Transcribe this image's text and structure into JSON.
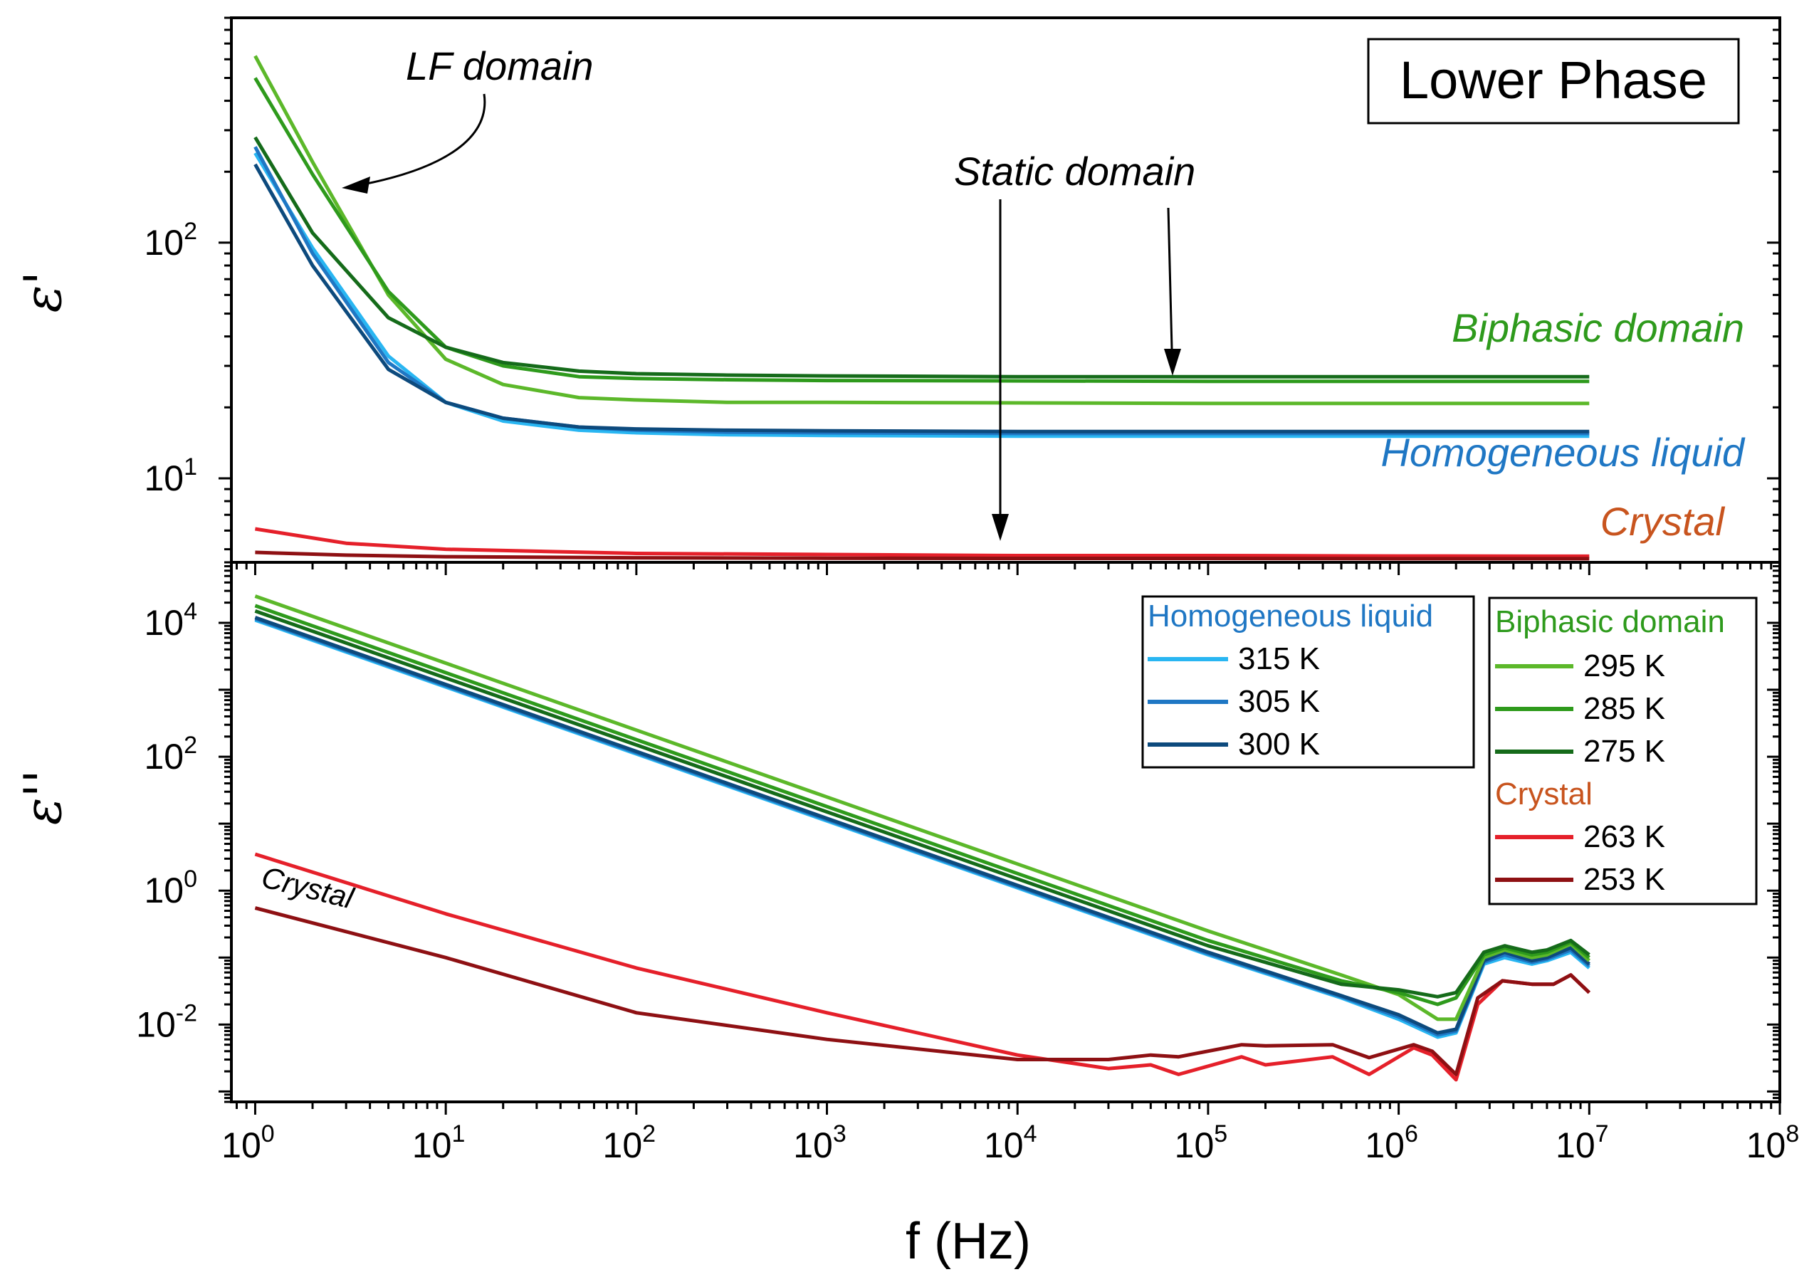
{
  "chart_data": [
    {
      "type": "line",
      "panel": "top",
      "title": "Lower Phase",
      "ylabel": "ε'",
      "xlabel": "f (Hz)",
      "x_scale": "log",
      "y_scale": "log",
      "xlim": [
        0.75,
        100000000
      ],
      "ylim": [
        4.4,
        900
      ],
      "yticks": [
        {
          "base": "10",
          "exp": "1",
          "value": 10
        },
        {
          "base": "10",
          "exp": "2",
          "value": 100
        }
      ],
      "annotations": {
        "lf": "LF domain",
        "static": "Static domain",
        "biphasic": "Biphasic domain",
        "homogeneous": "Homogeneous liquid",
        "crystal": "Crystal"
      },
      "series": [
        {
          "name": "315 K",
          "color": "#29b6f2",
          "x": [
            1,
            2,
            5,
            10,
            20,
            50,
            100,
            300,
            1000,
            10000,
            100000,
            1000000,
            10000000
          ],
          "y": [
            240,
            95,
            33,
            21,
            17.5,
            16,
            15.6,
            15.3,
            15.2,
            15.1,
            15.1,
            15.1,
            15.1
          ]
        },
        {
          "name": "305 K",
          "color": "#1f77c4",
          "x": [
            1,
            2,
            5,
            10,
            20,
            50,
            100,
            300,
            1000,
            10000,
            100000,
            1000000,
            10000000
          ],
          "y": [
            255,
            90,
            31,
            21,
            18,
            16.5,
            16,
            15.7,
            15.6,
            15.5,
            15.5,
            15.5,
            15.5
          ]
        },
        {
          "name": "300 K",
          "color": "#0d4a7d",
          "x": [
            1,
            2,
            5,
            10,
            20,
            50,
            100,
            300,
            1000,
            10000,
            100000,
            1000000,
            10000000
          ],
          "y": [
            215,
            80,
            29,
            21,
            18,
            16.5,
            16.2,
            16,
            15.9,
            15.8,
            15.8,
            15.8,
            15.8
          ]
        },
        {
          "name": "295 K",
          "color": "#5cb82a",
          "x": [
            1,
            2,
            5,
            10,
            20,
            50,
            100,
            300,
            1000,
            10000,
            100000,
            1000000,
            10000000
          ],
          "y": [
            620,
            220,
            60,
            32,
            25,
            22,
            21.5,
            21,
            21,
            20.9,
            20.8,
            20.8,
            20.8
          ]
        },
        {
          "name": "285 K",
          "color": "#2e9a1c",
          "x": [
            1,
            2,
            5,
            10,
            20,
            50,
            100,
            300,
            1000,
            10000,
            100000,
            1000000,
            10000000
          ],
          "y": [
            500,
            195,
            62,
            36,
            30,
            27,
            26.5,
            26.2,
            26,
            25.9,
            25.8,
            25.8,
            25.8
          ]
        },
        {
          "name": "275 K",
          "color": "#156b1a",
          "x": [
            1,
            2,
            5,
            10,
            20,
            50,
            100,
            300,
            1000,
            10000,
            100000,
            1000000,
            10000000
          ],
          "y": [
            280,
            110,
            48,
            36,
            31,
            28.5,
            27.8,
            27.4,
            27.2,
            27,
            27,
            27,
            27
          ]
        },
        {
          "name": "263 K",
          "color": "#e5202a",
          "x": [
            1,
            3,
            10,
            100,
            1000,
            10000,
            100000,
            1000000,
            10000000
          ],
          "y": [
            6.1,
            5.3,
            5.0,
            4.8,
            4.75,
            4.7,
            4.7,
            4.68,
            4.67
          ]
        },
        {
          "name": "253 K",
          "color": "#8e1013",
          "x": [
            1,
            3,
            10,
            100,
            1000,
            10000,
            100000,
            1000000,
            10000000
          ],
          "y": [
            4.85,
            4.72,
            4.65,
            4.6,
            4.58,
            4.57,
            4.57,
            4.56,
            4.56
          ]
        }
      ]
    },
    {
      "type": "line",
      "panel": "bottom",
      "ylabel": "ε''",
      "xlabel": "f (Hz)",
      "x_scale": "log",
      "y_scale": "log",
      "xlim": [
        0.75,
        100000000
      ],
      "ylim": [
        0.0007,
        80000
      ],
      "xticks": [
        {
          "base": "10",
          "exp": "0",
          "value": 1
        },
        {
          "base": "10",
          "exp": "1",
          "value": 10
        },
        {
          "base": "10",
          "exp": "2",
          "value": 100
        },
        {
          "base": "10",
          "exp": "3",
          "value": 1000
        },
        {
          "base": "10",
          "exp": "4",
          "value": 10000
        },
        {
          "base": "10",
          "exp": "5",
          "value": 100000
        },
        {
          "base": "10",
          "exp": "6",
          "value": 1000000
        },
        {
          "base": "10",
          "exp": "7",
          "value": 10000000
        },
        {
          "base": "10",
          "exp": "8",
          "value": 100000000
        }
      ],
      "yticks": [
        {
          "base": "10",
          "exp": "-2",
          "value": 0.01
        },
        {
          "base": "10",
          "exp": "0",
          "value": 1
        },
        {
          "base": "10",
          "exp": "2",
          "value": 100
        },
        {
          "base": "10",
          "exp": "4",
          "value": 10000
        }
      ],
      "annotations": {
        "crystal": "Crystal"
      },
      "legend_groups": [
        {
          "title": "Homogeneous liquid",
          "color": "#1f77c4",
          "entries": [
            "315 K",
            "305 K",
            "300 K"
          ]
        },
        {
          "title": "Biphasic domain",
          "color": "#2e9a1c",
          "entries": [
            "295 K",
            "285 K",
            "275 K"
          ]
        },
        {
          "title": "Crystal",
          "color": "#c8541e",
          "entries": [
            "263 K",
            "253 K"
          ]
        }
      ],
      "series": [
        {
          "name": "315 K",
          "color": "#29b6f2",
          "x": [
            1,
            10,
            100,
            1000,
            10000,
            100000,
            500000,
            1000000,
            1600000,
            2000000,
            2800000,
            3600000,
            5000000,
            6000000,
            8000000,
            10000000
          ],
          "y": [
            11000,
            1100,
            110,
            11,
            1.1,
            0.11,
            0.025,
            0.012,
            0.0065,
            0.0075,
            0.08,
            0.1,
            0.08,
            0.09,
            0.12,
            0.07
          ]
        },
        {
          "name": "305 K",
          "color": "#1f77c4",
          "x": [
            1,
            10,
            100,
            1000,
            10000,
            100000,
            500000,
            1000000,
            1600000,
            2000000,
            2800000,
            3600000,
            5000000,
            6000000,
            8000000,
            10000000
          ],
          "y": [
            11500,
            1150,
            115,
            11.5,
            1.15,
            0.115,
            0.026,
            0.013,
            0.007,
            0.008,
            0.085,
            0.11,
            0.085,
            0.095,
            0.13,
            0.075
          ]
        },
        {
          "name": "300 K",
          "color": "#0d4a7d",
          "x": [
            1,
            10,
            100,
            1000,
            10000,
            100000,
            500000,
            1000000,
            1600000,
            2000000,
            2800000,
            3600000,
            5000000,
            6000000,
            8000000,
            10000000
          ],
          "y": [
            12000,
            1200,
            120,
            12,
            1.2,
            0.12,
            0.027,
            0.014,
            0.0075,
            0.0085,
            0.09,
            0.12,
            0.09,
            0.1,
            0.14,
            0.08
          ]
        },
        {
          "name": "295 K",
          "color": "#5cb82a",
          "x": [
            1,
            10,
            100,
            1000,
            10000,
            100000,
            500000,
            1000000,
            1600000,
            2000000,
            2800000,
            3600000,
            5000000,
            6000000,
            8000000,
            10000000
          ],
          "y": [
            25000,
            2500,
            250,
            25,
            2.5,
            0.25,
            0.055,
            0.028,
            0.012,
            0.012,
            0.1,
            0.13,
            0.1,
            0.11,
            0.16,
            0.09
          ]
        },
        {
          "name": "285 K",
          "color": "#2e9a1c",
          "x": [
            1,
            10,
            100,
            1000,
            10000,
            100000,
            500000,
            1000000,
            1600000,
            2000000,
            2800000,
            3600000,
            5000000,
            6000000,
            8000000,
            10000000
          ],
          "y": [
            18000,
            1800,
            180,
            18,
            1.8,
            0.18,
            0.045,
            0.03,
            0.02,
            0.025,
            0.11,
            0.14,
            0.11,
            0.12,
            0.17,
            0.1
          ]
        },
        {
          "name": "275 K",
          "color": "#156b1a",
          "x": [
            1,
            10,
            100,
            1000,
            10000,
            100000,
            500000,
            1000000,
            1600000,
            2000000,
            2800000,
            3600000,
            5000000,
            6000000,
            8000000,
            10000000
          ],
          "y": [
            15000,
            1500,
            150,
            15,
            1.5,
            0.15,
            0.04,
            0.033,
            0.026,
            0.03,
            0.12,
            0.15,
            0.12,
            0.13,
            0.18,
            0.11
          ]
        },
        {
          "name": "263 K",
          "color": "#e5202a",
          "x": [
            1,
            10,
            100,
            1000,
            10000,
            30000,
            50000,
            70000,
            150000,
            200000,
            450000,
            700000,
            1200000,
            1500000,
            2000000,
            2600000,
            3500000,
            5000000,
            6500000,
            8000000,
            10000000
          ],
          "y": [
            3.5,
            0.45,
            0.07,
            0.015,
            0.0035,
            0.0022,
            0.0025,
            0.0018,
            0.0033,
            0.0025,
            0.0033,
            0.0018,
            0.0045,
            0.0035,
            0.0015,
            0.02,
            0.045,
            0.04,
            0.04,
            0.055,
            0.03
          ]
        },
        {
          "name": "253 K",
          "color": "#8e1013",
          "x": [
            1,
            10,
            100,
            1000,
            10000,
            30000,
            50000,
            70000,
            150000,
            200000,
            450000,
            700000,
            1200000,
            1500000,
            2000000,
            2600000,
            3500000,
            5000000,
            6500000,
            8000000,
            10000000
          ],
          "y": [
            0.55,
            0.1,
            0.015,
            0.006,
            0.003,
            0.003,
            0.0035,
            0.0033,
            0.005,
            0.0048,
            0.005,
            0.0032,
            0.005,
            0.004,
            0.0018,
            0.025,
            0.045,
            0.04,
            0.04,
            0.055,
            0.03
          ]
        }
      ]
    }
  ]
}
